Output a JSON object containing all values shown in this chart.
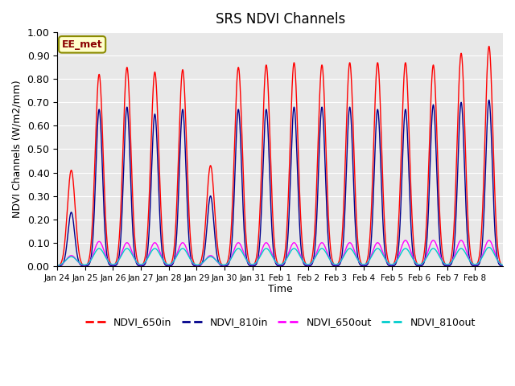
{
  "title": "SRS NDVI Channels",
  "xlabel": "Time",
  "ylabel": "NDVI Channels (W/m2/mm)",
  "ylim": [
    0.0,
    1.0
  ],
  "background_color": "#e8e8e8",
  "annotation_label": "EE_met",
  "legend_entries": [
    "NDVI_650in",
    "NDVI_810in",
    "NDVI_650out",
    "NDVI_810out"
  ],
  "legend_colors": [
    "#ff0000",
    "#00008b",
    "#ff00ff",
    "#00cccc"
  ],
  "series_colors": {
    "NDVI_650in": "#ff0000",
    "NDVI_810in": "#00008b",
    "NDVI_650out": "#ff00ff",
    "NDVI_810out": "#00cccc"
  },
  "xtick_labels": [
    "Jan 24",
    "Jan 25",
    "Jan 26",
    "Jan 27",
    "Jan 28",
    "Jan 29",
    "Jan 30",
    "Jan 31",
    "Feb 1",
    "Feb 2",
    "Feb 3",
    "Feb 4",
    "Feb 5",
    "Feb 6",
    "Feb 7",
    "Feb 8"
  ],
  "day_peaks_650in": [
    0.41,
    0.82,
    0.85,
    0.83,
    0.84,
    0.43,
    0.85,
    0.86,
    0.87,
    0.86,
    0.87,
    0.87,
    0.87,
    0.86,
    0.91,
    0.94
  ],
  "day_peaks_810in": [
    0.23,
    0.67,
    0.68,
    0.65,
    0.67,
    0.3,
    0.67,
    0.67,
    0.68,
    0.68,
    0.68,
    0.67,
    0.67,
    0.69,
    0.7,
    0.71
  ],
  "day_peaks_650out": [
    0.045,
    0.105,
    0.1,
    0.1,
    0.1,
    0.045,
    0.1,
    0.1,
    0.1,
    0.1,
    0.1,
    0.1,
    0.11,
    0.11,
    0.11,
    0.11
  ],
  "day_peaks_810out": [
    0.04,
    0.075,
    0.075,
    0.075,
    0.075,
    0.04,
    0.075,
    0.075,
    0.075,
    0.075,
    0.075,
    0.075,
    0.075,
    0.075,
    0.075,
    0.08
  ],
  "n_days": 16,
  "points_per_day": 300
}
